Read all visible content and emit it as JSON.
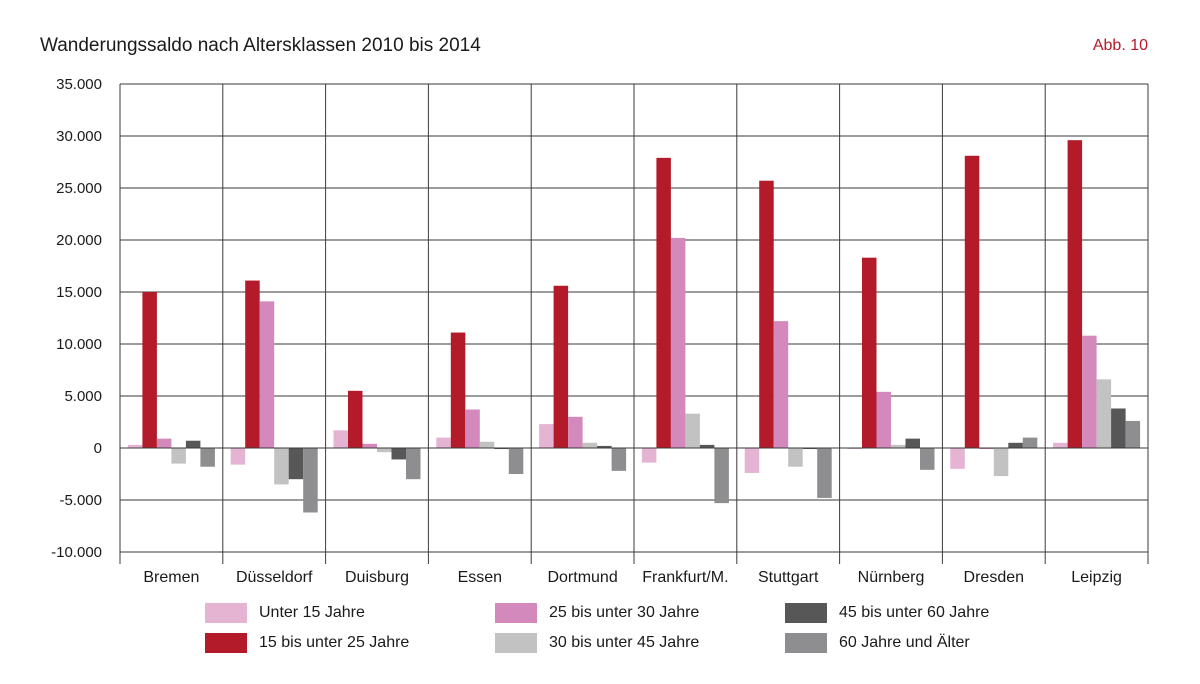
{
  "header": {
    "title": "Wanderungssaldo nach Altersklassen 2010 bis 2014",
    "figure_label": "Abb. 10",
    "figure_label_color": "#b31b2a"
  },
  "chart_data": {
    "type": "bar",
    "title": "Wanderungssaldo nach Altersklassen 2010 bis 2014",
    "xlabel": "",
    "ylabel": "",
    "ylim": [
      -10000,
      35000
    ],
    "yticks": [
      35000,
      30000,
      25000,
      20000,
      15000,
      10000,
      5000,
      0,
      -5000,
      -10000
    ],
    "ytick_labels": [
      "35.000",
      "30.000",
      "25.000",
      "20.000",
      "15.000",
      "10.000",
      "5.000",
      "0",
      "-5.000",
      "-10.000"
    ],
    "grid": true,
    "legend_position": "bottom",
    "categories": [
      "Bremen",
      "Düsseldorf",
      "Duisburg",
      "Essen",
      "Dortmund",
      "Frankfurt/M.",
      "Stuttgart",
      "Nürnberg",
      "Dresden",
      "Leipzig"
    ],
    "series": [
      {
        "name": "Unter 15 Jahre",
        "color": "#e6b4d3",
        "values": [
          300,
          -1600,
          1700,
          1000,
          2300,
          -1400,
          -2400,
          -100,
          -2000,
          500
        ]
      },
      {
        "name": "15 bis unter 25 Jahre",
        "color": "#b31b2a",
        "values": [
          15000,
          16100,
          5500,
          11100,
          15600,
          27900,
          25700,
          18300,
          28100,
          29600
        ]
      },
      {
        "name": "25 bis unter 30 Jahre",
        "color": "#d389bb",
        "values": [
          900,
          14100,
          400,
          3700,
          3000,
          20200,
          12200,
          5400,
          -100,
          10800
        ]
      },
      {
        "name": "30 bis unter 45 Jahre",
        "color": "#c2c2c2",
        "values": [
          -1500,
          -3500,
          -400,
          600,
          500,
          3300,
          -1800,
          300,
          -2700,
          6600
        ]
      },
      {
        "name": "45 bis unter 60 Jahre",
        "color": "#575757",
        "values": [
          700,
          -3000,
          -1100,
          -100,
          200,
          300,
          -100,
          900,
          500,
          3800
        ]
      },
      {
        "name": "60 Jahre und Älter",
        "color": "#8e8e90",
        "values": [
          -1800,
          -6200,
          -3000,
          -2500,
          -2200,
          -5300,
          -4800,
          -2100,
          1000,
          2600
        ]
      }
    ]
  },
  "legend": {
    "items": [
      {
        "label": "Unter 15 Jahre",
        "color": "#e6b4d3"
      },
      {
        "label": "15 bis unter 25 Jahre",
        "color": "#b31b2a"
      },
      {
        "label": "25 bis unter 30 Jahre",
        "color": "#d389bb"
      },
      {
        "label": "30 bis unter 45 Jahre",
        "color": "#c2c2c2"
      },
      {
        "label": "45 bis unter 60 Jahre",
        "color": "#575757"
      },
      {
        "label": "60 Jahre und Älter",
        "color": "#8e8e90"
      }
    ]
  }
}
